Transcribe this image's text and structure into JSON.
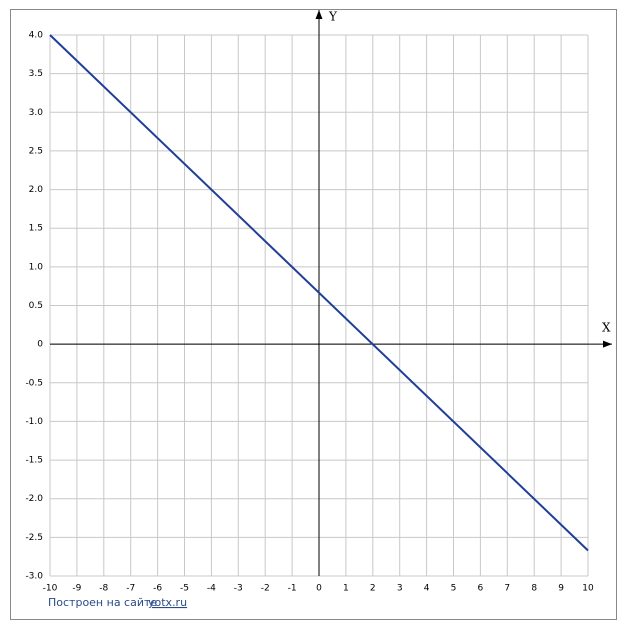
{
  "chart_data": {
    "type": "line",
    "x_label": "X",
    "y_label": "Y",
    "x": [
      -10,
      10
    ],
    "series": [
      {
        "color": "#1f3f96",
        "values": [
          4.0,
          -2.67
        ]
      }
    ],
    "xlim": [
      -10,
      10
    ],
    "xticks": [
      -10,
      -9,
      -8,
      -7,
      -6,
      -5,
      -4,
      -3,
      -2,
      -1,
      0,
      1,
      2,
      3,
      4,
      5,
      6,
      7,
      8,
      9,
      10
    ],
    "ylim": [
      -3,
      4
    ],
    "yticks": [
      {
        "value": 4,
        "label": "4.0"
      },
      3.5,
      {
        "value": 3,
        "label": "3.0"
      },
      2.5,
      {
        "value": 2,
        "label": "2.0"
      },
      1.5,
      {
        "value": 1,
        "label": "1.0"
      },
      0.5,
      0,
      -0.5,
      {
        "value": -1,
        "label": "-1.0"
      },
      -1.5,
      {
        "value": -2,
        "label": "-2.0"
      },
      -2.5,
      {
        "value": -3,
        "label": "-3.0"
      }
    ],
    "grid": true,
    "credit": "Построен на сайте",
    "credit_link": "yotx.ru"
  }
}
